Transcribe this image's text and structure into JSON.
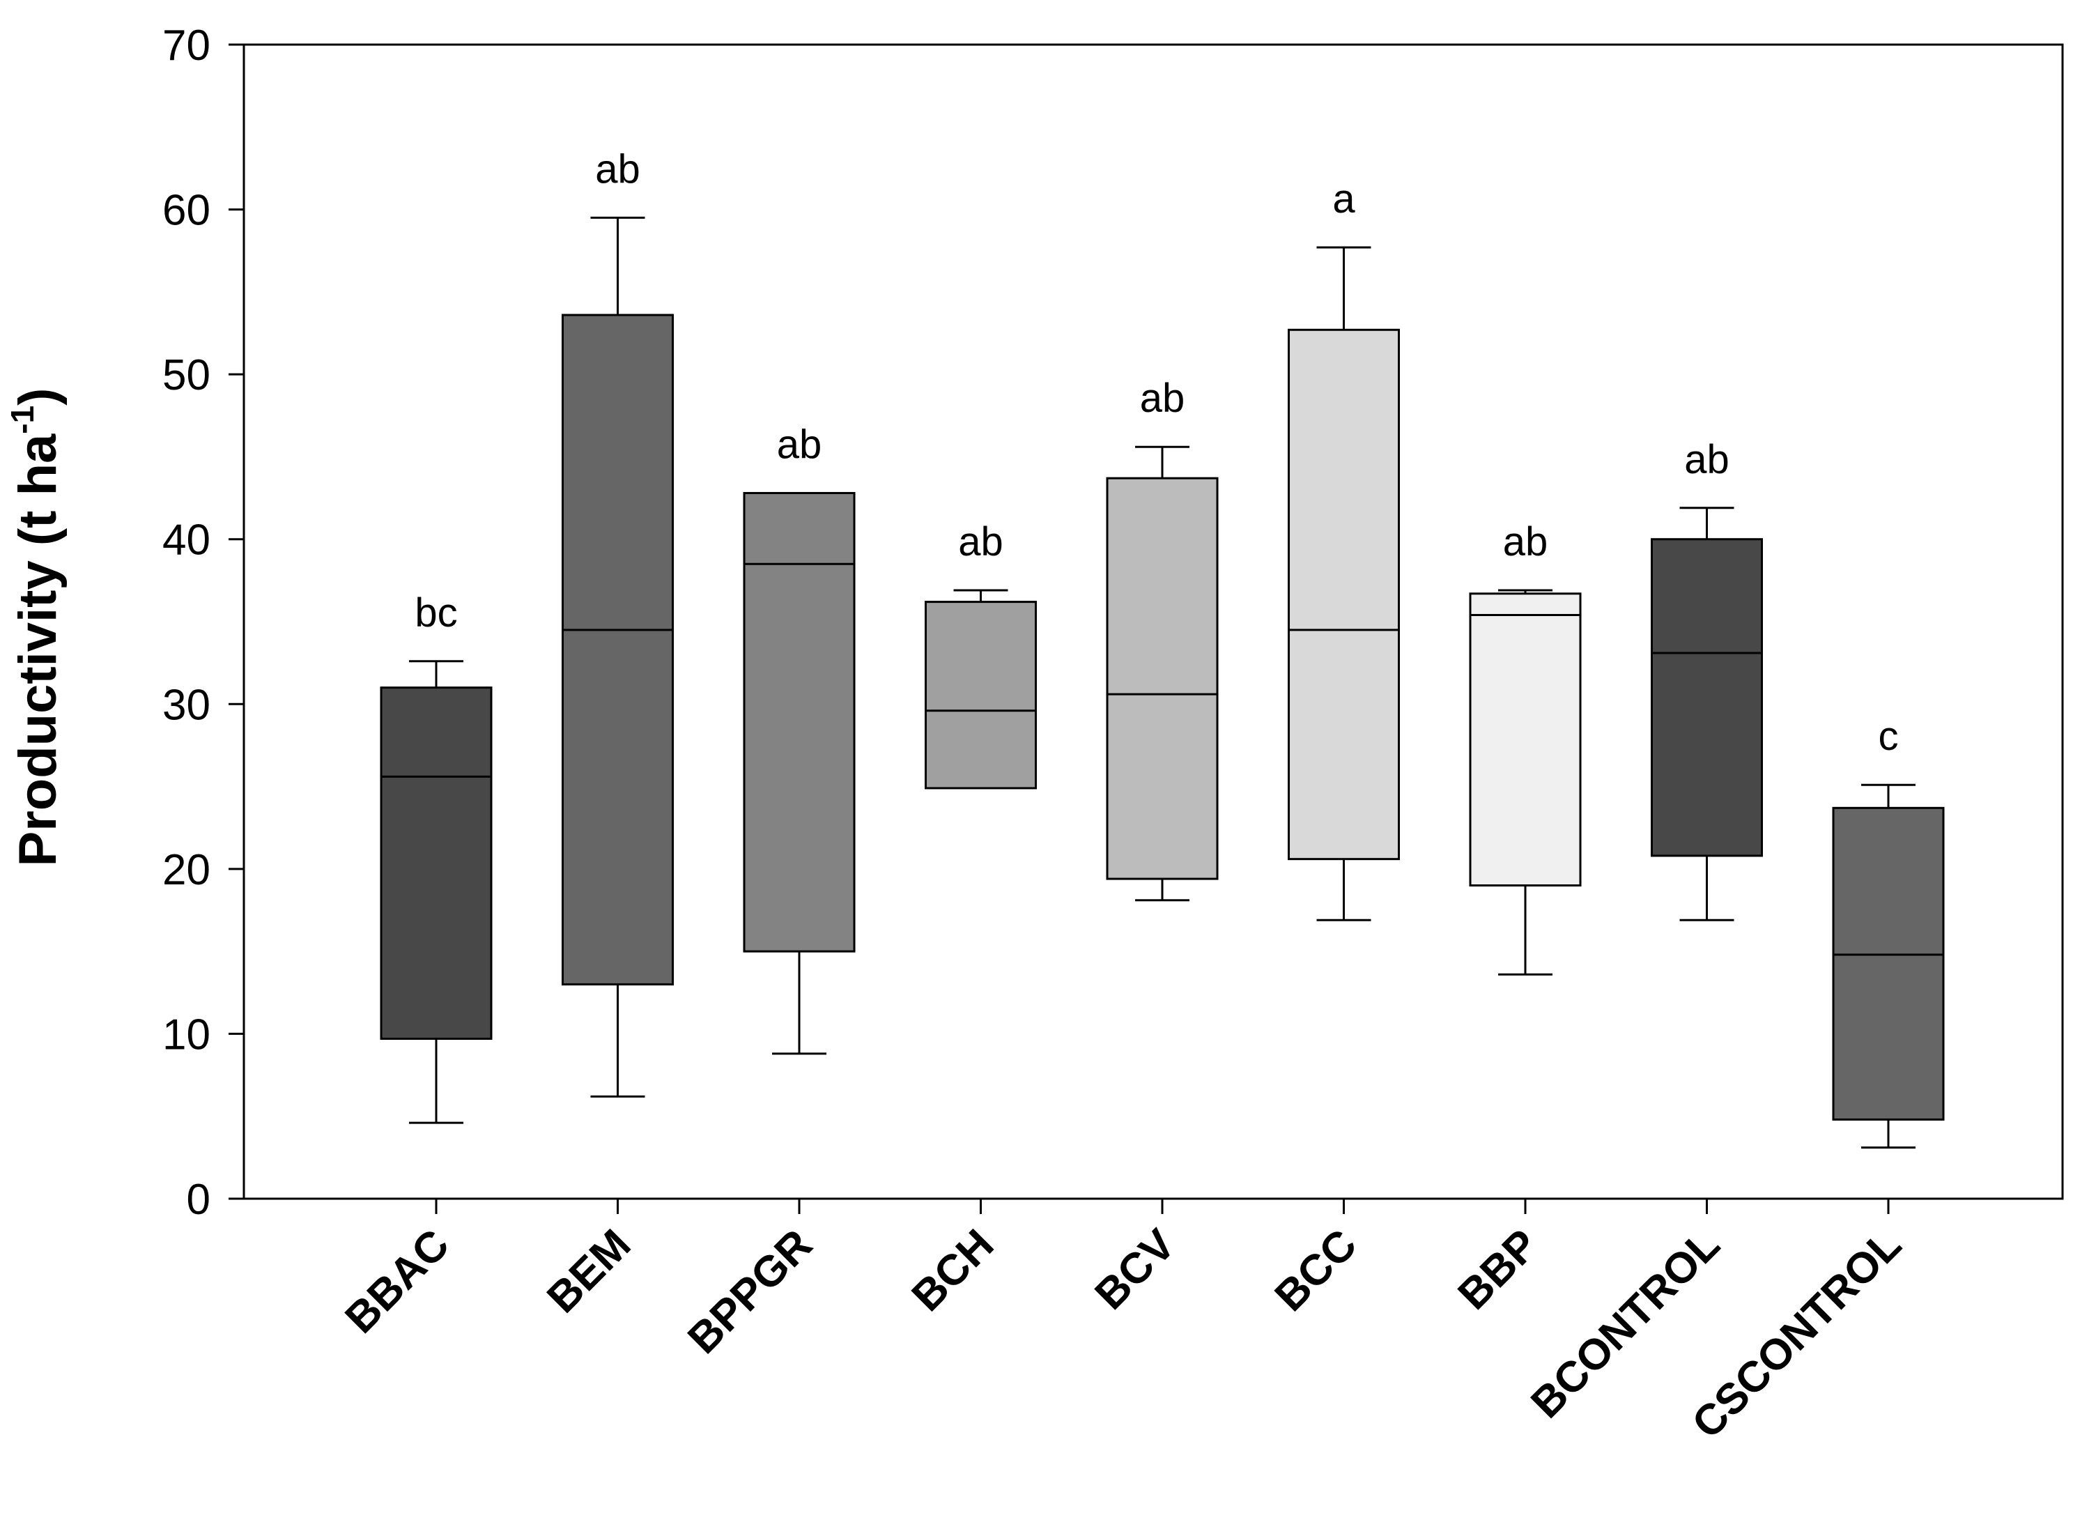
{
  "chart_data": {
    "type": "box",
    "title": "",
    "xlabel": "",
    "ylabel": "Productivity (t ha",
    "ylabel_superscript": "-1",
    "ylabel_close": ")",
    "ylim": [
      0,
      70
    ],
    "yticks": [
      0,
      10,
      20,
      30,
      40,
      50,
      60,
      70
    ],
    "grid": false,
    "categories": [
      "BBAC",
      "BEM",
      "BPPGR",
      "BCH",
      "BCV",
      "BCC",
      "BBP",
      "BCONTROL",
      "CSCONTROL"
    ],
    "boxes": [
      {
        "name": "BBAC",
        "whisker_low": 4.6,
        "q1": 9.7,
        "median": 25.6,
        "q3": 31.0,
        "whisker_high": 32.6,
        "letter": "bc",
        "fill": "#484848"
      },
      {
        "name": "BEM",
        "whisker_low": 6.2,
        "q1": 13.0,
        "median": 34.5,
        "q3": 53.6,
        "whisker_high": 59.5,
        "letter": "ab",
        "fill": "#666666"
      },
      {
        "name": "BPPGR",
        "whisker_low": 8.8,
        "q1": 15.0,
        "median": 38.5,
        "q3": 42.8,
        "whisker_high": null,
        "letter": "ab",
        "fill": "#838383"
      },
      {
        "name": "BCH",
        "whisker_low": null,
        "q1": 24.9,
        "median": 29.6,
        "q3": 36.2,
        "whisker_high": 36.9,
        "letter": "ab",
        "fill": "#a0a0a0"
      },
      {
        "name": "BCV",
        "whisker_low": 18.1,
        "q1": 19.4,
        "median": 30.6,
        "q3": 43.7,
        "whisker_high": 45.6,
        "letter": "ab",
        "fill": "#bcbcbc"
      },
      {
        "name": "BCC",
        "whisker_low": 16.9,
        "q1": 20.6,
        "median": 34.5,
        "q3": 52.7,
        "whisker_high": 57.7,
        "letter": "a",
        "fill": "#d9d9d9"
      },
      {
        "name": "BBP",
        "whisker_low": 13.6,
        "q1": 19.0,
        "median": 35.4,
        "q3": 36.7,
        "whisker_high": 36.9,
        "letter": "ab",
        "fill": "#f0f0f0"
      },
      {
        "name": "BCONTROL",
        "whisker_low": 16.9,
        "q1": 20.8,
        "median": 33.1,
        "q3": 40.0,
        "whisker_high": 41.9,
        "letter": "ab",
        "fill": "#484848"
      },
      {
        "name": "CSCONTROL",
        "whisker_low": 3.1,
        "q1": 4.8,
        "median": 14.8,
        "q3": 23.7,
        "whisker_high": 25.1,
        "letter": "c",
        "fill": "#666666"
      }
    ]
  }
}
